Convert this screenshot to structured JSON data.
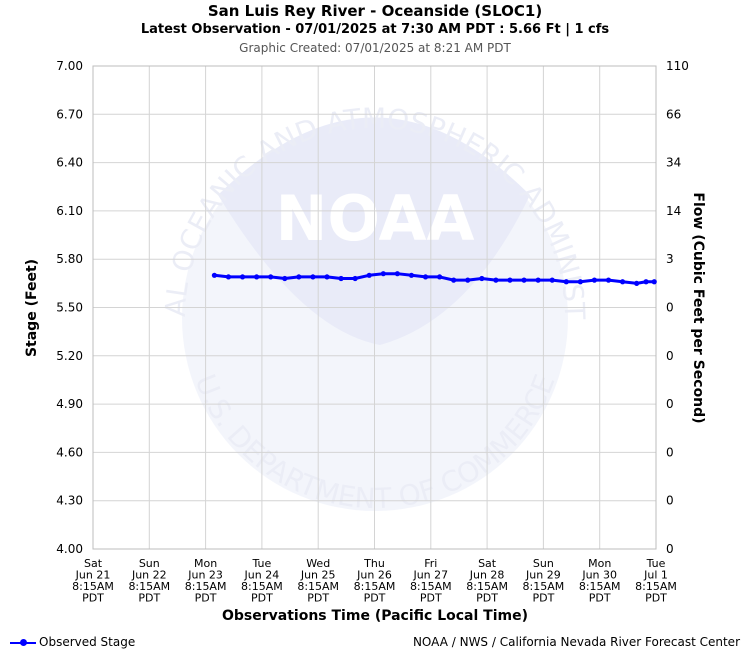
{
  "header": {
    "title": "San Luis Rey River - Oceanside (SLOC1)",
    "latest": "Latest Observation - 07/01/2025 at 7:30 AM PDT : 5.66 Ft | 1 cfs",
    "created": "Graphic Created: 07/01/2025 at 8:21 AM PDT"
  },
  "footer": {
    "legend_label": "Observed Stage",
    "credit": "NOAA / NWS / California Nevada River Forecast Center"
  },
  "watermark": {
    "logo_text": "NOAA",
    "ring_top": "NATIONAL OCEANIC AND ATMOSPHERIC ADMINISTRATION",
    "ring_bottom": "U.S. DEPARTMENT OF COMMERCE"
  },
  "chart_data": {
    "type": "line",
    "xlabel": "Observations Time (Pacific Local Time)",
    "ylabel": "Stage (Feet)",
    "ylabel_right": "Flow (Cubic Feet per Second)",
    "ylim": [
      4.0,
      7.0
    ],
    "y_ticks": [
      "4.00",
      "4.30",
      "4.60",
      "4.90",
      "5.20",
      "5.50",
      "5.80",
      "6.10",
      "6.40",
      "6.70",
      "7.00"
    ],
    "y_right_ticks": [
      "0",
      "0",
      "0",
      "0",
      "0",
      "0",
      "3",
      "14",
      "34",
      "66",
      "110"
    ],
    "x_ticks": [
      [
        "Sat",
        "Jun 21",
        "8:15AM",
        "PDT"
      ],
      [
        "Sun",
        "Jun 22",
        "8:15AM",
        "PDT"
      ],
      [
        "Mon",
        "Jun 23",
        "8:15AM",
        "PDT"
      ],
      [
        "Tue",
        "Jun 24",
        "8:15AM",
        "PDT"
      ],
      [
        "Wed",
        "Jun 25",
        "8:15AM",
        "PDT"
      ],
      [
        "Thu",
        "Jun 26",
        "8:15AM",
        "PDT"
      ],
      [
        "Fri",
        "Jun 27",
        "8:15AM",
        "PDT"
      ],
      [
        "Sat",
        "Jun 28",
        "8:15AM",
        "PDT"
      ],
      [
        "Sun",
        "Jun 29",
        "8:15AM",
        "PDT"
      ],
      [
        "Mon",
        "Jun 30",
        "8:15AM",
        "PDT"
      ],
      [
        "Tue",
        "Jul 1",
        "8:15AM",
        "PDT"
      ]
    ],
    "grid": true,
    "legend_position": "bottom-left",
    "series": [
      {
        "name": "Observed Stage",
        "color": "#0000ff",
        "points": [
          [
            "06/23 12:00",
            5.7
          ],
          [
            "06/23 18:00",
            5.69
          ],
          [
            "06/24 00:00",
            5.69
          ],
          [
            "06/24 06:00",
            5.69
          ],
          [
            "06/24 12:00",
            5.69
          ],
          [
            "06/24 18:00",
            5.68
          ],
          [
            "06/25 00:00",
            5.69
          ],
          [
            "06/25 06:00",
            5.69
          ],
          [
            "06/25 12:00",
            5.69
          ],
          [
            "06/25 18:00",
            5.68
          ],
          [
            "06/26 00:00",
            5.68
          ],
          [
            "06/26 06:00",
            5.7
          ],
          [
            "06/26 12:00",
            5.71
          ],
          [
            "06/26 18:00",
            5.71
          ],
          [
            "06/27 00:00",
            5.7
          ],
          [
            "06/27 06:00",
            5.69
          ],
          [
            "06/27 12:00",
            5.69
          ],
          [
            "06/27 18:00",
            5.67
          ],
          [
            "06/28 00:00",
            5.67
          ],
          [
            "06/28 06:00",
            5.68
          ],
          [
            "06/28 12:00",
            5.67
          ],
          [
            "06/28 18:00",
            5.67
          ],
          [
            "06/29 00:00",
            5.67
          ],
          [
            "06/29 06:00",
            5.67
          ],
          [
            "06/29 12:00",
            5.67
          ],
          [
            "06/29 18:00",
            5.66
          ],
          [
            "06/30 00:00",
            5.66
          ],
          [
            "06/30 06:00",
            5.67
          ],
          [
            "06/30 12:00",
            5.67
          ],
          [
            "06/30 18:00",
            5.66
          ],
          [
            "07/01 00:00",
            5.65
          ],
          [
            "07/01 04:00",
            5.66
          ],
          [
            "07/01 07:30",
            5.66
          ]
        ]
      }
    ]
  }
}
